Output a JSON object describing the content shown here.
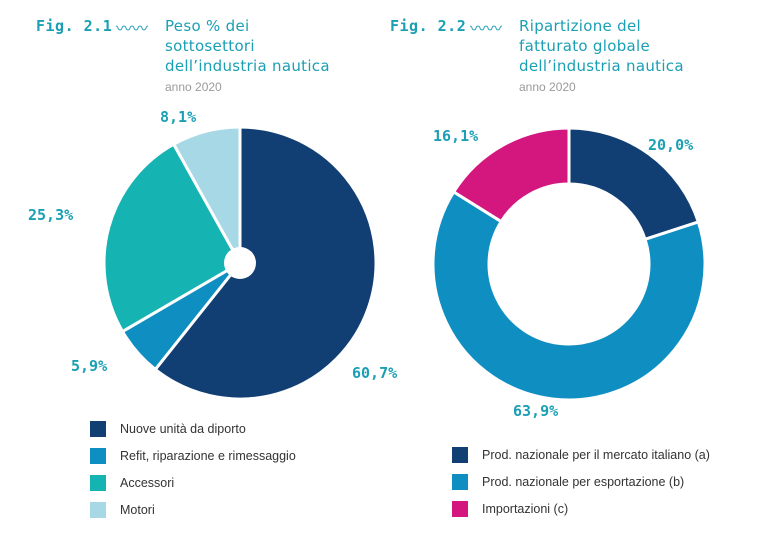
{
  "figures": [
    {
      "fig_label": "Fig. 2.1",
      "title_lines": [
        "Peso % dei",
        "sottosettori",
        "dell’industria nautica"
      ],
      "subtitle": "anno 2020"
    },
    {
      "fig_label": "Fig. 2.2",
      "title_lines": [
        "Ripartizione del",
        "fatturato globale",
        "dell’industria nautica"
      ],
      "subtitle": "anno 2020"
    }
  ],
  "chart_data": [
    {
      "type": "pie",
      "title": "Peso % dei sottosettori dell’industria nautica",
      "subtitle": "anno 2020",
      "categories": [
        "Nuove unità da diporto",
        "Refit, riparazione e rimessaggio",
        "Accessori",
        "Motori"
      ],
      "values": [
        60.7,
        5.9,
        25.3,
        8.1
      ],
      "value_labels": [
        "60,7%",
        "5,9%",
        "25,3%",
        "8,1%"
      ],
      "colors": [
        "#123f73",
        "#0f8ec1",
        "#16b3b3",
        "#a6d8e6"
      ],
      "legend_placement": "bottom"
    },
    {
      "type": "pie",
      "variant": "donut",
      "title": "Ripartizione del fatturato globale dell’industria nautica",
      "subtitle": "anno 2020",
      "categories": [
        "Prod. nazionale per il mercato italiano (a)",
        "Prod. nazionale per esportazione (b)",
        "Importazioni (c)"
      ],
      "values": [
        20.0,
        63.9,
        16.1
      ],
      "value_labels": [
        "20,0%",
        "63,9%",
        "16,1%"
      ],
      "colors": [
        "#123f73",
        "#0f8ec1",
        "#d4177f"
      ],
      "legend_placement": "bottom"
    }
  ]
}
